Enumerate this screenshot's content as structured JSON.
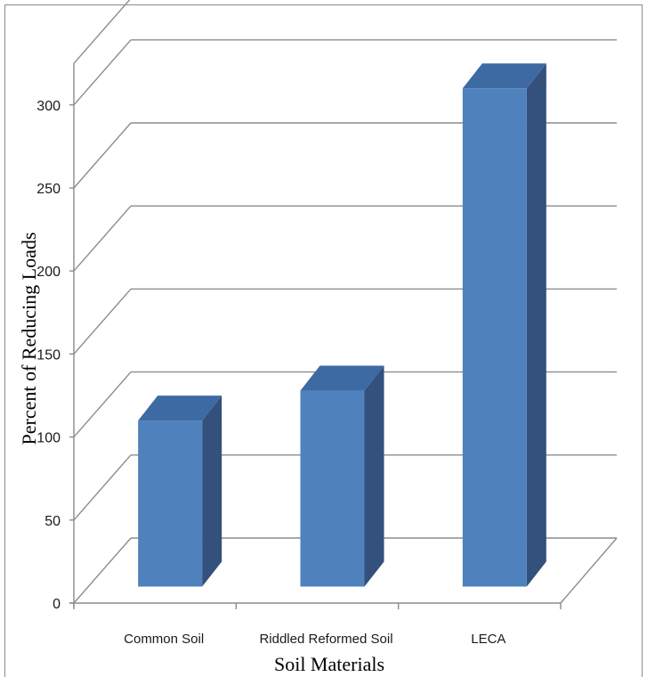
{
  "chart_data": {
    "type": "bar",
    "categories": [
      "Common Soil",
      "Riddled Reformed Soil",
      "LECA"
    ],
    "values": [
      100,
      118,
      300
    ],
    "title": "",
    "xlabel": "Soil Materials",
    "ylabel": "Percent of Reducing Loads",
    "ylim": [
      0,
      300
    ],
    "yticks": [
      "0",
      "50",
      "100",
      "150",
      "200",
      "250",
      "300"
    ],
    "grid": true,
    "legend": "none",
    "style": "3d-column",
    "colors": {
      "bar_front": "#4f81bd",
      "bar_side": "#34507c",
      "bar_top": "#3e6aa4",
      "grid": "#8c8c8c"
    }
  }
}
